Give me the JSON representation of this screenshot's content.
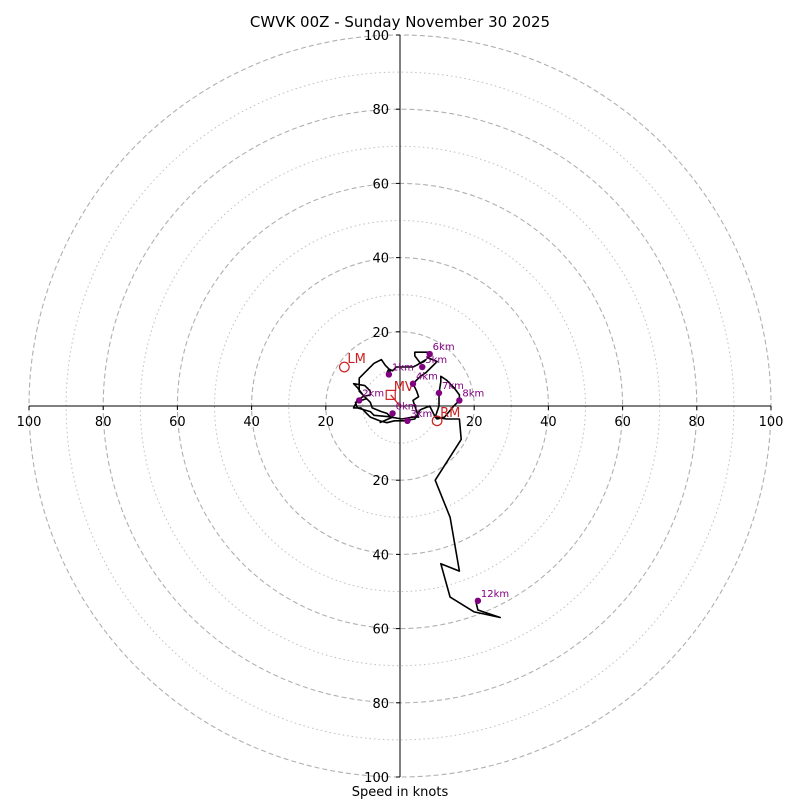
{
  "chart_data": {
    "type": "line",
    "title": "CWVK 00Z - Sunday November 30 2025",
    "xlabel": "Speed in knots",
    "ylabel": "",
    "xlim": [
      -100,
      100
    ],
    "ylim": [
      -100,
      100
    ],
    "ring_major": [
      20,
      40,
      60,
      80,
      100
    ],
    "ring_minor": [
      10,
      30,
      50,
      70,
      90
    ],
    "x_ticks": [
      {
        "value": -100,
        "label": "100"
      },
      {
        "value": -80,
        "label": "80"
      },
      {
        "value": -60,
        "label": "60"
      },
      {
        "value": -40,
        "label": "40"
      },
      {
        "value": -20,
        "label": "20"
      },
      {
        "value": 20,
        "label": "20"
      },
      {
        "value": 40,
        "label": "40"
      },
      {
        "value": 60,
        "label": "60"
      },
      {
        "value": 80,
        "label": "80"
      },
      {
        "value": 100,
        "label": "100"
      }
    ],
    "y_ticks": [
      {
        "value": 100,
        "label": "100"
      },
      {
        "value": 80,
        "label": "80"
      },
      {
        "value": 60,
        "label": "60"
      },
      {
        "value": 40,
        "label": "40"
      },
      {
        "value": 20,
        "label": "20"
      },
      {
        "value": -20,
        "label": "20"
      },
      {
        "value": -40,
        "label": "40"
      },
      {
        "value": -60,
        "label": "60"
      },
      {
        "value": -80,
        "label": "80"
      },
      {
        "value": -100,
        "label": "100"
      }
    ],
    "hodograph": [
      [
        -5.5,
        -4.5
      ],
      [
        -2,
        -3
      ],
      [
        -7,
        -2.5
      ],
      [
        -8,
        -1.5
      ],
      [
        -11.5,
        -0.5
      ],
      [
        -12,
        1
      ],
      [
        -9,
        2
      ],
      [
        -11,
        4
      ],
      [
        -11,
        7.5
      ],
      [
        -7,
        11.5
      ],
      [
        -5,
        12.5
      ],
      [
        -4,
        11
      ],
      [
        -2.5,
        9.5
      ],
      [
        -3.5,
        9
      ],
      [
        -3,
        10
      ],
      [
        -2,
        9.5
      ],
      [
        -1,
        10.5
      ],
      [
        0,
        10.5
      ],
      [
        3.5,
        10.5
      ],
      [
        4.5,
        11
      ],
      [
        7,
        12.5
      ],
      [
        6.5,
        12
      ],
      [
        5.5,
        11.5
      ],
      [
        4,
        13.5
      ],
      [
        4,
        14.5
      ],
      [
        7.5,
        14.5
      ],
      [
        8.5,
        14
      ],
      [
        7.5,
        13
      ],
      [
        10,
        12
      ],
      [
        7,
        9
      ],
      [
        5.5,
        8
      ],
      [
        3.5,
        6
      ],
      [
        4.5,
        4
      ],
      [
        5,
        2.5
      ],
      [
        3.5,
        1.5
      ],
      [
        4,
        0
      ],
      [
        5,
        -3
      ],
      [
        3.5,
        -3
      ],
      [
        0.5,
        -3.5
      ],
      [
        -2.5,
        -3
      ],
      [
        -3.5,
        -2
      ],
      [
        -5,
        -1.5
      ],
      [
        -7.5,
        -0.5
      ],
      [
        -8,
        1
      ],
      [
        -10,
        3
      ],
      [
        -11.5,
        5
      ],
      [
        -12.5,
        6
      ],
      [
        -9.5,
        5.5
      ],
      [
        -8,
        4
      ],
      [
        -8,
        3
      ],
      [
        -10,
        2.5
      ],
      [
        -11.5,
        1.5
      ],
      [
        -12,
        0.5
      ],
      [
        -12.5,
        -0.5
      ],
      [
        -10.5,
        -0.5
      ],
      [
        -9,
        -2
      ],
      [
        -8,
        -3
      ],
      [
        -5.5,
        -4
      ],
      [
        -3.5,
        -4.5
      ],
      [
        -1.5,
        -4
      ],
      [
        1,
        -4
      ],
      [
        4,
        -3.5
      ],
      [
        5.5,
        -1
      ],
      [
        8,
        0
      ],
      [
        9.5,
        -3
      ],
      [
        10,
        -3.5
      ],
      [
        12,
        -3
      ],
      [
        14.5,
        0
      ],
      [
        16,
        1.5
      ],
      [
        16,
        3
      ],
      [
        14.5,
        5
      ],
      [
        12.5,
        7
      ],
      [
        11,
        8
      ],
      [
        11,
        6.5
      ],
      [
        10.5,
        3.5
      ],
      [
        10.5,
        0
      ],
      [
        9.5,
        -3
      ],
      [
        12.5,
        -3.5
      ],
      [
        16,
        -3.5
      ],
      [
        16.5,
        -9
      ],
      [
        9.5,
        -20
      ],
      [
        13.5,
        -30
      ],
      [
        16,
        -44.5
      ],
      [
        11,
        -42.5
      ],
      [
        13.5,
        -51.5
      ],
      [
        20,
        -55.5
      ],
      [
        27,
        -57
      ],
      [
        21,
        -55
      ],
      [
        20.5,
        -53
      ]
    ],
    "height_markers": [
      {
        "label": "1km",
        "x": -3,
        "y": 8.5
      },
      {
        "label": "2km",
        "x": -11,
        "y": 1.5
      },
      {
        "label": "3km",
        "x": 2,
        "y": -4
      },
      {
        "label": "4km",
        "x": 3.5,
        "y": 6
      },
      {
        "label": "5km",
        "x": 6,
        "y": 10.5
      },
      {
        "label": "6km",
        "x": 8,
        "y": 14
      },
      {
        "label": "7km",
        "x": 10.5,
        "y": 3.5
      },
      {
        "label": "8km",
        "x": 16,
        "y": 1.5
      },
      {
        "label": "12km",
        "x": 21,
        "y": -52.5
      },
      {
        "label": "0km",
        "x": -2,
        "y": -2
      }
    ],
    "storm_motion": [
      {
        "label": "LM",
        "x": -15,
        "y": 10.5
      },
      {
        "label": "MV",
        "x": -2.5,
        "y": 3
      },
      {
        "label": "RM",
        "x": 10,
        "y": -4
      }
    ],
    "colors": {
      "hodograph": "#000000",
      "markers": "#800080",
      "motion": "#cc2222",
      "grid": "#b0b0b0",
      "axes": "#000000"
    }
  }
}
